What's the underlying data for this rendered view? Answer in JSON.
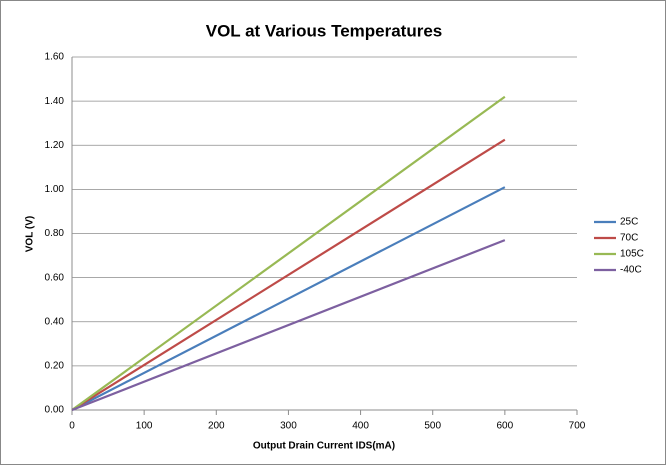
{
  "chart_data": {
    "type": "line",
    "title": "VOL at Various Temperatures",
    "x_label": "Output Drain Current IDS(mA)",
    "y_label": "VOL (V)",
    "x": [
      0,
      600
    ],
    "series": [
      {
        "name": "25C",
        "color": "#4a7ebb",
        "values": [
          0,
          1.01
        ]
      },
      {
        "name": "70C",
        "color": "#be4b48",
        "values": [
          0,
          1.225
        ]
      },
      {
        "name": "105C",
        "color": "#98b954",
        "values": [
          0,
          1.42
        ]
      },
      {
        "name": "-40C",
        "color": "#7d60a0",
        "values": [
          0,
          0.77
        ]
      }
    ],
    "xlim": [
      0,
      700
    ],
    "xticks": [
      0,
      100,
      200,
      300,
      400,
      500,
      600,
      700
    ],
    "ylim": [
      0,
      1.6
    ],
    "yticks": [
      {
        "value": 0,
        "label": "0.00"
      },
      {
        "value": 0.2,
        "label": "0.20"
      },
      {
        "value": 0.4,
        "label": "0.40"
      },
      {
        "value": 0.6,
        "label": "0.60"
      },
      {
        "value": 0.8,
        "label": "0.80"
      },
      {
        "value": 1.0,
        "label": "1.00"
      },
      {
        "value": 1.2,
        "label": "1.20"
      },
      {
        "value": 1.4,
        "label": "1.40"
      },
      {
        "value": 1.6,
        "label": "1.60"
      }
    ],
    "grid": true,
    "legend": "right"
  }
}
